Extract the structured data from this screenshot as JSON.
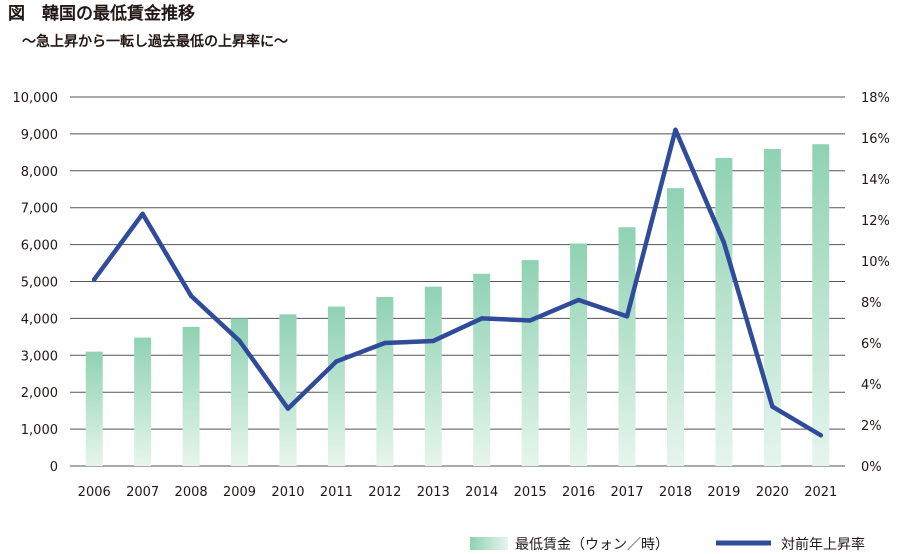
{
  "title": "図　韓国の最低賃金推移",
  "subtitle": "〜急上昇から一転し過去最低の上昇率に〜",
  "colors": {
    "bar_top": "#8fd2b3",
    "bar_bottom": "#e6f5ee",
    "bar_main": "#3aa77a",
    "line": "#2f4b9a",
    "grid": "#555555",
    "text": "#231815"
  },
  "chart_data": {
    "type": "bar",
    "categories": [
      "2006",
      "2007",
      "2008",
      "2009",
      "2010",
      "2011",
      "2012",
      "2013",
      "2014",
      "2015",
      "2016",
      "2017",
      "2018",
      "2019",
      "2020",
      "2021"
    ],
    "series": [
      {
        "name": "最低賃金（ウォン／時）",
        "type": "bar",
        "axis": "left",
        "values": [
          3100,
          3480,
          3770,
          4000,
          4110,
          4320,
          4580,
          4860,
          5210,
          5580,
          6030,
          6470,
          7530,
          8350,
          8590,
          8720
        ]
      },
      {
        "name": "対前年上昇率",
        "type": "line",
        "axis": "right",
        "values": [
          9.1,
          12.3,
          8.3,
          6.1,
          2.8,
          5.1,
          6.0,
          6.1,
          7.2,
          7.1,
          8.1,
          7.3,
          16.4,
          10.9,
          2.9,
          1.5
        ]
      }
    ],
    "y_left": {
      "ylim": [
        0,
        10000
      ],
      "ticks": [
        "0",
        "1,000",
        "2,000",
        "3,000",
        "4,000",
        "5,000",
        "6,000",
        "7,000",
        "8,000",
        "9,000",
        "10,000"
      ]
    },
    "y_right": {
      "ylim": [
        0,
        18
      ],
      "ticks": [
        "0%",
        "2%",
        "4%",
        "6%",
        "8%",
        "10%",
        "12%",
        "14%",
        "16%",
        "18%"
      ]
    },
    "grid": "horizontal",
    "legend": "bottom-right"
  }
}
